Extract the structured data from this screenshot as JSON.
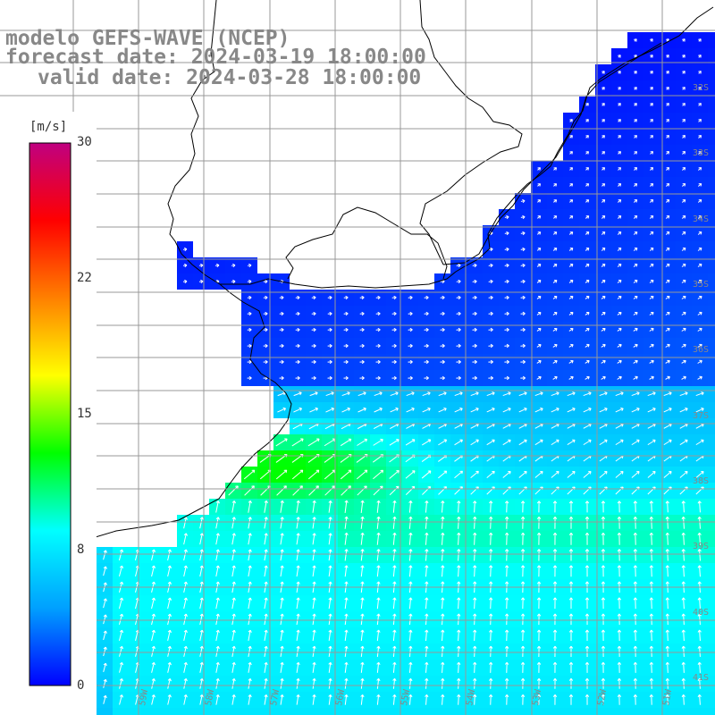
{
  "title": {
    "model_line": "modelo GEFS-WAVE (NCEP)",
    "forecast_line": "forecast date: 2024-03-19 18:00:00",
    "valid_line": "valid date: 2024-03-28 18:00:00"
  },
  "colorbar": {
    "unit": "[m/s]",
    "min": 0,
    "max": 30,
    "ticks": [
      "30",
      "22",
      "15",
      "8",
      "0"
    ],
    "tick_values": [
      30,
      22,
      15,
      8,
      0
    ],
    "colors": [
      "#0000ff",
      "#00a0ff",
      "#00ffff",
      "#00ff00",
      "#ffff00",
      "#ff8000",
      "#ff0000",
      "#c00080"
    ]
  },
  "map": {
    "lat_labels": [
      "32S",
      "33S",
      "34S",
      "35S",
      "36S",
      "37S",
      "38S",
      "39S",
      "40S",
      "41S"
    ],
    "lon_labels": [
      "61W",
      "60W",
      "59W",
      "58W",
      "57W",
      "56W",
      "55W",
      "54W",
      "53W",
      "52W",
      "51W"
    ],
    "grid": true,
    "land_color": "#ffffff",
    "vector_color": "#ffffff",
    "wind_field": [
      {
        "region": "northern river/estuary",
        "speed_ms": 1,
        "direction": "east"
      },
      {
        "region": "central shelf",
        "speed_ms": 3,
        "direction": "east-northeast"
      },
      {
        "region": "southern ocean band",
        "speed_ms": 9,
        "direction": "north"
      },
      {
        "region": "peak near coast",
        "speed_ms": 12,
        "direction": "northwest"
      }
    ]
  }
}
